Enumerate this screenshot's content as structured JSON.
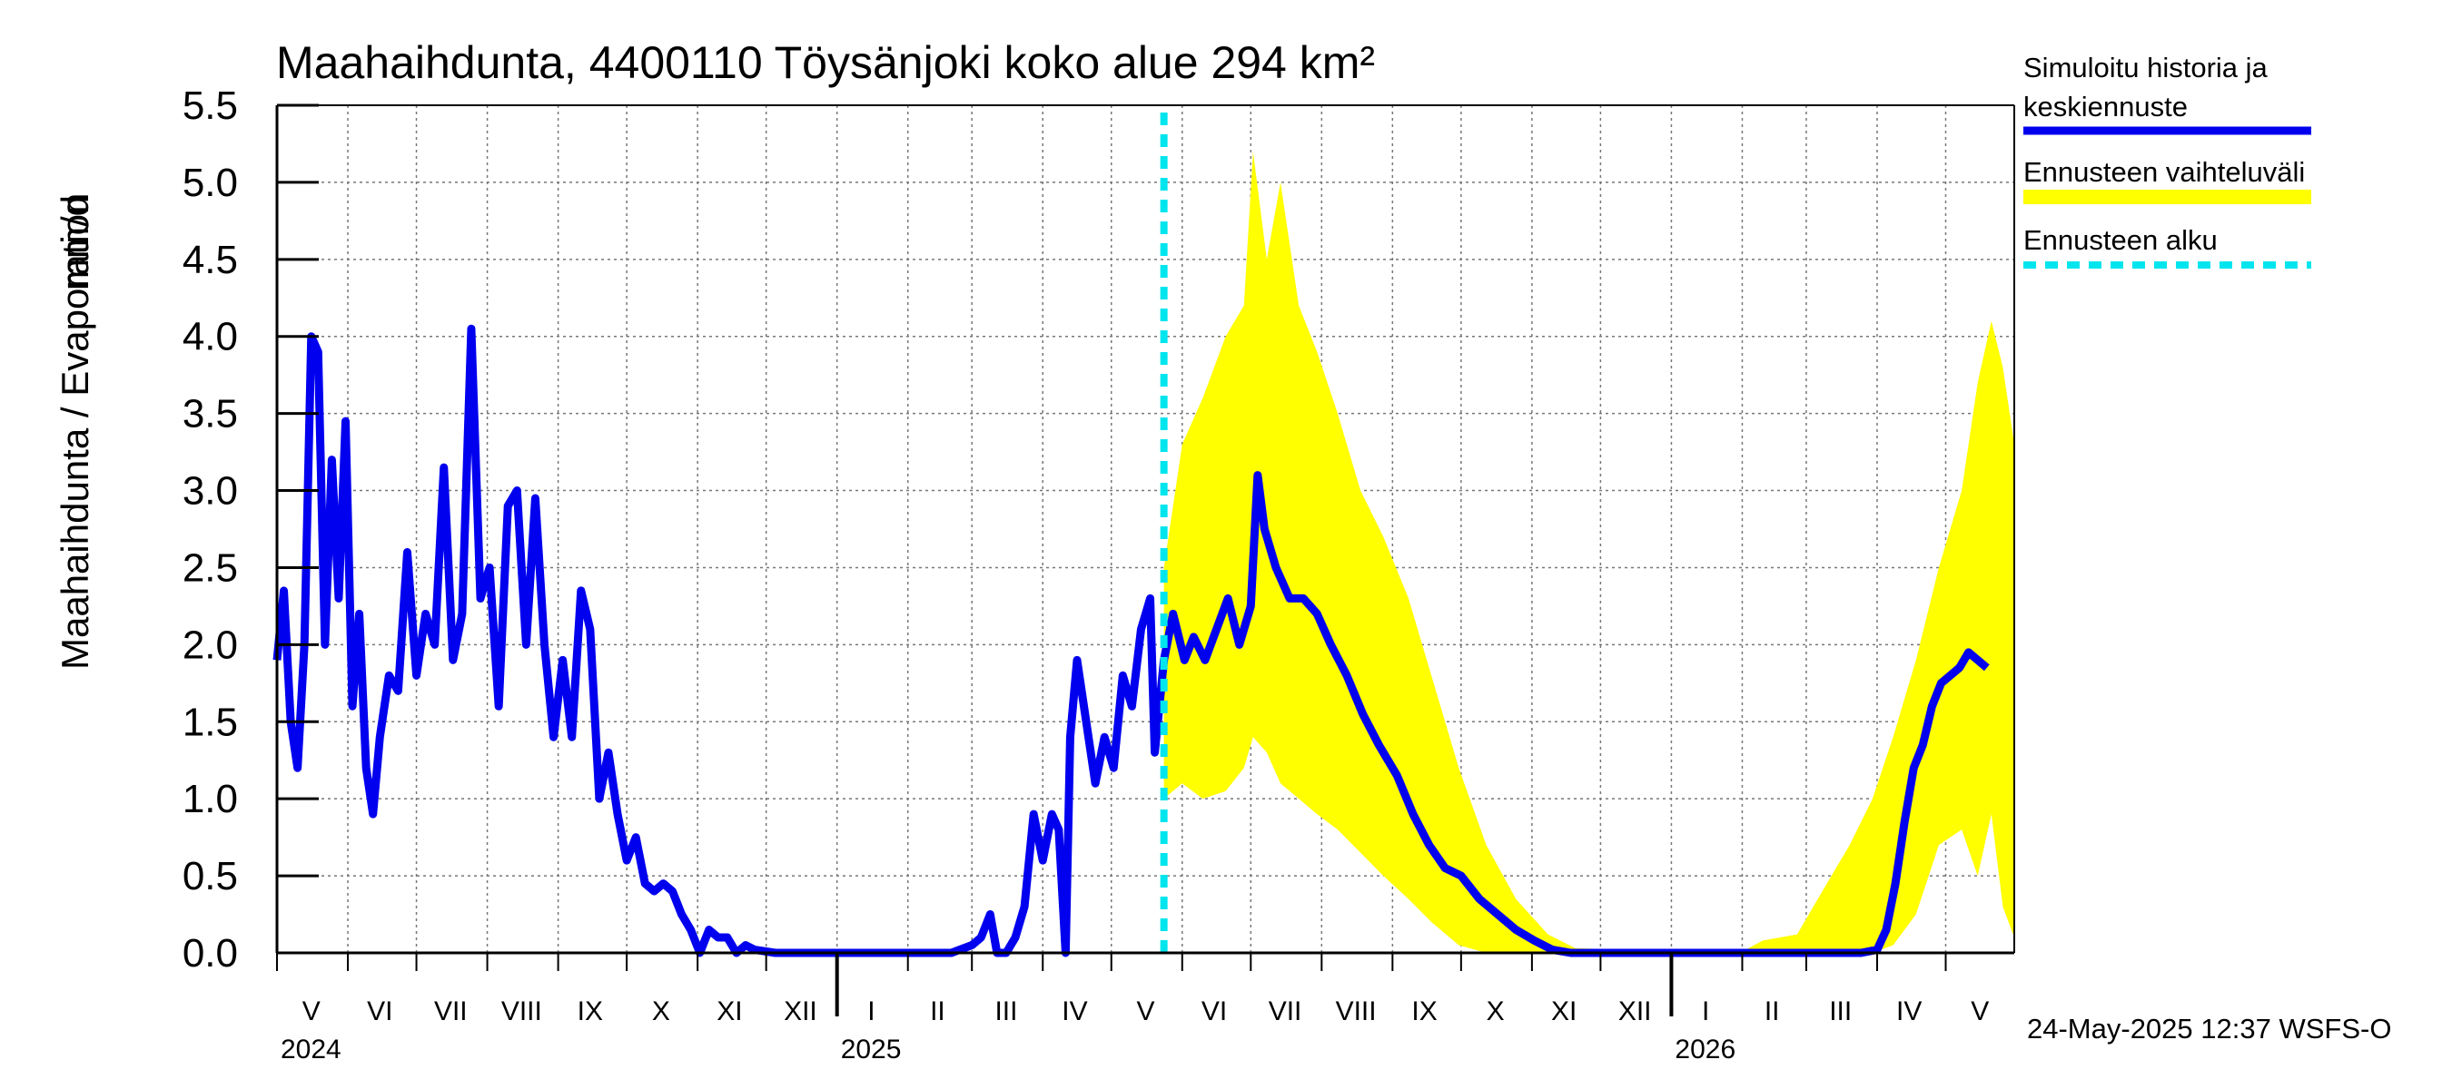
{
  "chart_data": {
    "type": "line",
    "title": "Maahaihdunta, 4400110 Töysänjoki koko alue 294 km²",
    "ylabel_left": "Maahaihdunta / Evaporation",
    "ylabel_unit": "mm/d",
    "ylim": [
      0,
      5.5
    ],
    "yticks": [
      "0.0",
      "0.5",
      "1.0",
      "1.5",
      "2.0",
      "2.5",
      "3.0",
      "3.5",
      "4.0",
      "4.5",
      "5.0",
      "5.5"
    ],
    "x_start": "2024-05-01",
    "x_end": "2026-05-31",
    "forecast_start": "2025-05-24",
    "grid": true,
    "legend_position": "right",
    "month_labels": [
      {
        "label": "V",
        "date": "2024-05-16"
      },
      {
        "label": "VI",
        "date": "2024-06-15"
      },
      {
        "label": "VII",
        "date": "2024-07-16"
      },
      {
        "label": "VIII",
        "date": "2024-08-16"
      },
      {
        "label": "IX",
        "date": "2024-09-15"
      },
      {
        "label": "X",
        "date": "2024-10-16"
      },
      {
        "label": "XI",
        "date": "2024-11-15"
      },
      {
        "label": "XII",
        "date": "2024-12-16"
      },
      {
        "label": "I",
        "date": "2025-01-16"
      },
      {
        "label": "II",
        "date": "2025-02-14"
      },
      {
        "label": "III",
        "date": "2025-03-16"
      },
      {
        "label": "IV",
        "date": "2025-04-15"
      },
      {
        "label": "V",
        "date": "2025-05-16"
      },
      {
        "label": "VI",
        "date": "2025-06-15"
      },
      {
        "label": "VII",
        "date": "2025-07-16"
      },
      {
        "label": "VIII",
        "date": "2025-08-16"
      },
      {
        "label": "IX",
        "date": "2025-09-15"
      },
      {
        "label": "X",
        "date": "2025-10-16"
      },
      {
        "label": "XI",
        "date": "2025-11-15"
      },
      {
        "label": "XII",
        "date": "2025-12-16"
      },
      {
        "label": "I",
        "date": "2026-01-16"
      },
      {
        "label": "II",
        "date": "2026-02-14"
      },
      {
        "label": "III",
        "date": "2026-03-16"
      },
      {
        "label": "IV",
        "date": "2026-04-15"
      },
      {
        "label": "V",
        "date": "2026-05-16"
      }
    ],
    "year_labels": [
      {
        "label": "2024",
        "date": "2024-05-01"
      },
      {
        "label": "2025",
        "date": "2025-01-01"
      },
      {
        "label": "2026",
        "date": "2026-01-01"
      }
    ],
    "series": [
      {
        "name": "Simuloitu historia ja keskiennuste",
        "color": "#0000ee",
        "points": [
          [
            "2024-05-01",
            1.9
          ],
          [
            "2024-05-04",
            2.35
          ],
          [
            "2024-05-07",
            1.5
          ],
          [
            "2024-05-10",
            1.2
          ],
          [
            "2024-05-13",
            2.0
          ],
          [
            "2024-05-16",
            4.0
          ],
          [
            "2024-05-19",
            3.9
          ],
          [
            "2024-05-22",
            2.0
          ],
          [
            "2024-05-25",
            3.2
          ],
          [
            "2024-05-28",
            2.3
          ],
          [
            "2024-05-31",
            3.45
          ],
          [
            "2024-06-03",
            1.6
          ],
          [
            "2024-06-06",
            2.2
          ],
          [
            "2024-06-09",
            1.2
          ],
          [
            "2024-06-12",
            0.9
          ],
          [
            "2024-06-15",
            1.4
          ],
          [
            "2024-06-19",
            1.8
          ],
          [
            "2024-06-23",
            1.7
          ],
          [
            "2024-06-27",
            2.6
          ],
          [
            "2024-07-01",
            1.8
          ],
          [
            "2024-07-05",
            2.2
          ],
          [
            "2024-07-09",
            2.0
          ],
          [
            "2024-07-13",
            3.15
          ],
          [
            "2024-07-17",
            1.9
          ],
          [
            "2024-07-21",
            2.2
          ],
          [
            "2024-07-25",
            4.05
          ],
          [
            "2024-07-29",
            2.3
          ],
          [
            "2024-08-02",
            2.5
          ],
          [
            "2024-08-06",
            1.6
          ],
          [
            "2024-08-10",
            2.9
          ],
          [
            "2024-08-14",
            3.0
          ],
          [
            "2024-08-18",
            2.0
          ],
          [
            "2024-08-22",
            2.95
          ],
          [
            "2024-08-26",
            2.0
          ],
          [
            "2024-08-30",
            1.4
          ],
          [
            "2024-09-03",
            1.9
          ],
          [
            "2024-09-07",
            1.4
          ],
          [
            "2024-09-11",
            2.35
          ],
          [
            "2024-09-15",
            2.1
          ],
          [
            "2024-09-19",
            1.0
          ],
          [
            "2024-09-23",
            1.3
          ],
          [
            "2024-09-27",
            0.9
          ],
          [
            "2024-10-01",
            0.6
          ],
          [
            "2024-10-05",
            0.75
          ],
          [
            "2024-10-09",
            0.45
          ],
          [
            "2024-10-13",
            0.4
          ],
          [
            "2024-10-17",
            0.45
          ],
          [
            "2024-10-21",
            0.4
          ],
          [
            "2024-10-25",
            0.25
          ],
          [
            "2024-10-29",
            0.15
          ],
          [
            "2024-11-02",
            0.0
          ],
          [
            "2024-11-06",
            0.15
          ],
          [
            "2024-11-10",
            0.1
          ],
          [
            "2024-11-14",
            0.1
          ],
          [
            "2024-11-18",
            0.0
          ],
          [
            "2024-11-22",
            0.05
          ],
          [
            "2024-11-26",
            0.02
          ],
          [
            "2024-12-05",
            0.0
          ],
          [
            "2025-01-15",
            0.0
          ],
          [
            "2025-02-20",
            0.0
          ],
          [
            "2025-03-01",
            0.05
          ],
          [
            "2025-03-05",
            0.1
          ],
          [
            "2025-03-09",
            0.25
          ],
          [
            "2025-03-12",
            0.0
          ],
          [
            "2025-03-16",
            0.0
          ],
          [
            "2025-03-20",
            0.1
          ],
          [
            "2025-03-24",
            0.3
          ],
          [
            "2025-03-28",
            0.9
          ],
          [
            "2025-04-01",
            0.6
          ],
          [
            "2025-04-05",
            0.9
          ],
          [
            "2025-04-08",
            0.8
          ],
          [
            "2025-04-11",
            0.0
          ],
          [
            "2025-04-13",
            1.4
          ],
          [
            "2025-04-16",
            1.9
          ],
          [
            "2025-04-20",
            1.5
          ],
          [
            "2025-04-24",
            1.1
          ],
          [
            "2025-04-28",
            1.4
          ],
          [
            "2025-05-02",
            1.2
          ],
          [
            "2025-05-06",
            1.8
          ],
          [
            "2025-05-10",
            1.6
          ],
          [
            "2025-05-14",
            2.1
          ],
          [
            "2025-05-18",
            2.3
          ],
          [
            "2025-05-20",
            1.3
          ],
          [
            "2025-05-24",
            1.9
          ],
          [
            "2025-05-28",
            2.2
          ],
          [
            "2025-06-02",
            1.9
          ],
          [
            "2025-06-06",
            2.05
          ],
          [
            "2025-06-11",
            1.9
          ],
          [
            "2025-06-16",
            2.1
          ],
          [
            "2025-06-21",
            2.3
          ],
          [
            "2025-06-26",
            2.0
          ],
          [
            "2025-07-01",
            2.25
          ],
          [
            "2025-07-04",
            3.1
          ],
          [
            "2025-07-07",
            2.75
          ],
          [
            "2025-07-12",
            2.5
          ],
          [
            "2025-07-18",
            2.3
          ],
          [
            "2025-07-24",
            2.3
          ],
          [
            "2025-07-30",
            2.2
          ],
          [
            "2025-08-05",
            2.0
          ],
          [
            "2025-08-12",
            1.8
          ],
          [
            "2025-08-19",
            1.55
          ],
          [
            "2025-08-26",
            1.35
          ],
          [
            "2025-09-03",
            1.15
          ],
          [
            "2025-09-10",
            0.9
          ],
          [
            "2025-09-17",
            0.7
          ],
          [
            "2025-09-24",
            0.55
          ],
          [
            "2025-10-01",
            0.5
          ],
          [
            "2025-10-09",
            0.35
          ],
          [
            "2025-10-17",
            0.25
          ],
          [
            "2025-10-25",
            0.15
          ],
          [
            "2025-11-02",
            0.08
          ],
          [
            "2025-11-10",
            0.02
          ],
          [
            "2025-11-18",
            0.0
          ],
          [
            "2026-03-25",
            0.0
          ],
          [
            "2026-04-01",
            0.02
          ],
          [
            "2026-04-05",
            0.15
          ],
          [
            "2026-04-09",
            0.45
          ],
          [
            "2026-04-13",
            0.85
          ],
          [
            "2026-04-17",
            1.2
          ],
          [
            "2026-04-21",
            1.35
          ],
          [
            "2026-04-25",
            1.6
          ],
          [
            "2026-04-29",
            1.75
          ],
          [
            "2026-05-03",
            1.8
          ],
          [
            "2026-05-07",
            1.85
          ],
          [
            "2026-05-11",
            1.95
          ],
          [
            "2026-05-15",
            1.9
          ],
          [
            "2026-05-19",
            1.85
          ]
        ]
      }
    ],
    "band": {
      "name": "Ennusteen vaihteluväli",
      "color": "#ffff00",
      "points": [
        [
          "2025-05-24",
          1.0,
          2.5
        ],
        [
          "2025-06-01",
          1.1,
          3.3
        ],
        [
          "2025-06-10",
          1.0,
          3.6
        ],
        [
          "2025-06-20",
          1.05,
          4.0
        ],
        [
          "2025-06-28",
          1.2,
          4.2
        ],
        [
          "2025-07-02",
          1.4,
          5.2
        ],
        [
          "2025-07-08",
          1.3,
          4.5
        ],
        [
          "2025-07-14",
          1.1,
          5.0
        ],
        [
          "2025-07-22",
          1.0,
          4.2
        ],
        [
          "2025-07-30",
          0.9,
          3.9
        ],
        [
          "2025-08-08",
          0.8,
          3.5
        ],
        [
          "2025-08-18",
          0.65,
          3.0
        ],
        [
          "2025-08-28",
          0.5,
          2.7
        ],
        [
          "2025-09-08",
          0.35,
          2.3
        ],
        [
          "2025-09-18",
          0.2,
          1.8
        ],
        [
          "2025-09-30",
          0.05,
          1.2
        ],
        [
          "2025-10-12",
          0.0,
          0.7
        ],
        [
          "2025-10-25",
          0.0,
          0.35
        ],
        [
          "2025-11-08",
          0.0,
          0.12
        ],
        [
          "2025-11-20",
          0.0,
          0.03
        ],
        [
          "2026-01-31",
          0.0,
          0.0
        ],
        [
          "2026-02-10",
          0.0,
          0.08
        ],
        [
          "2026-02-25",
          0.0,
          0.12
        ],
        [
          "2026-03-10",
          0.0,
          0.45
        ],
        [
          "2026-03-20",
          0.0,
          0.7
        ],
        [
          "2026-03-30",
          0.0,
          1.0
        ],
        [
          "2026-04-08",
          0.05,
          1.4
        ],
        [
          "2026-04-18",
          0.25,
          1.9
        ],
        [
          "2026-04-28",
          0.7,
          2.5
        ],
        [
          "2026-05-08",
          0.8,
          3.0
        ],
        [
          "2026-05-15",
          0.5,
          3.7
        ],
        [
          "2026-05-21",
          0.9,
          4.1
        ],
        [
          "2026-05-26",
          0.3,
          3.8
        ],
        [
          "2026-05-31",
          0.1,
          3.3
        ]
      ]
    },
    "forecast_marker": {
      "name": "Ennusteen alku",
      "color": "#00e5ee"
    }
  },
  "legend": {
    "history_line1": "Simuloitu historia ja",
    "history_line2": "keskiennuste",
    "band": "Ennusteen vaihteluväli",
    "forecast_start": "Ennusteen alku"
  },
  "footer": "24-May-2025 12:37 WSFS-O"
}
